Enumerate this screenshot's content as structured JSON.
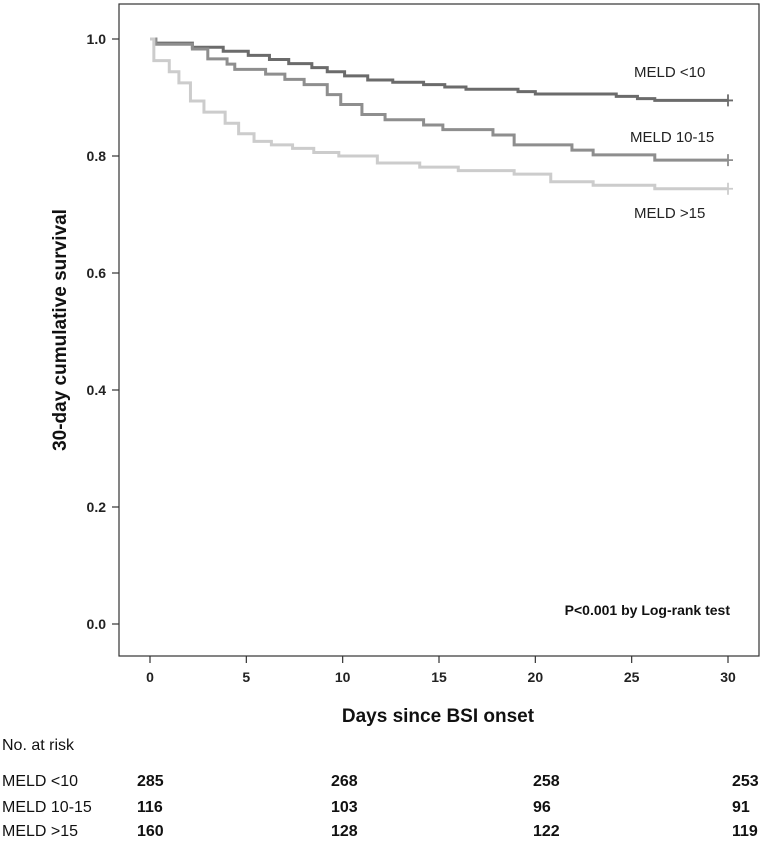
{
  "chart_data": {
    "type": "line",
    "subtype": "kaplan-meier step",
    "title": "",
    "xlabel": "Days since BSI onset",
    "ylabel": "30-day cumulative survival",
    "xlim": [
      0,
      30
    ],
    "ylim": [
      0,
      1.0
    ],
    "xticks": [
      "0",
      "5",
      "10",
      "15",
      "20",
      "25",
      "30"
    ],
    "yticks": [
      "0.0",
      "0.2",
      "0.4",
      "0.6",
      "0.8",
      "1.0"
    ],
    "grid": false,
    "annotation": "P<0.001 by Log-rank test",
    "series": [
      {
        "name": "MELD <10",
        "label": "MELD <10",
        "color": "#6b6b6b",
        "points": [
          [
            0,
            1.0
          ],
          [
            0.3,
            0.993
          ],
          [
            2.2,
            0.986
          ],
          [
            3.8,
            0.979
          ],
          [
            5.1,
            0.972
          ],
          [
            6.2,
            0.965
          ],
          [
            7.2,
            0.958
          ],
          [
            8.4,
            0.951
          ],
          [
            9.2,
            0.944
          ],
          [
            10.1,
            0.937
          ],
          [
            11.3,
            0.93
          ],
          [
            12.6,
            0.926
          ],
          [
            14.2,
            0.922
          ],
          [
            15.3,
            0.918
          ],
          [
            16.4,
            0.914
          ],
          [
            19.1,
            0.91
          ],
          [
            20.0,
            0.906
          ],
          [
            24.2,
            0.902
          ],
          [
            25.3,
            0.898
          ],
          [
            26.2,
            0.895
          ],
          [
            30,
            0.895
          ]
        ]
      },
      {
        "name": "MELD 10-15",
        "label": "MELD 10-15",
        "color": "#8e8e8e",
        "points": [
          [
            0,
            1.0
          ],
          [
            0.3,
            0.991
          ],
          [
            2.2,
            0.983
          ],
          [
            3.0,
            0.966
          ],
          [
            4.0,
            0.957
          ],
          [
            4.4,
            0.948
          ],
          [
            6.0,
            0.94
          ],
          [
            7.0,
            0.931
          ],
          [
            8.0,
            0.922
          ],
          [
            9.2,
            0.905
          ],
          [
            9.9,
            0.888
          ],
          [
            11.0,
            0.871
          ],
          [
            12.2,
            0.862
          ],
          [
            14.2,
            0.853
          ],
          [
            15.2,
            0.845
          ],
          [
            17.8,
            0.836
          ],
          [
            18.9,
            0.819
          ],
          [
            20.1,
            0.819
          ],
          [
            21.9,
            0.81
          ],
          [
            23.0,
            0.802
          ],
          [
            26.2,
            0.793
          ],
          [
            30,
            0.793
          ]
        ]
      },
      {
        "name": "MELD >15",
        "label": "MELD >15",
        "color": "#cccccc",
        "points": [
          [
            0,
            1.0
          ],
          [
            0.2,
            0.963
          ],
          [
            1.0,
            0.944
          ],
          [
            1.5,
            0.925
          ],
          [
            2.1,
            0.894
          ],
          [
            2.8,
            0.875
          ],
          [
            3.9,
            0.856
          ],
          [
            4.6,
            0.838
          ],
          [
            5.4,
            0.825
          ],
          [
            6.3,
            0.819
          ],
          [
            7.4,
            0.813
          ],
          [
            8.5,
            0.806
          ],
          [
            9.8,
            0.8
          ],
          [
            11.8,
            0.788
          ],
          [
            14.0,
            0.781
          ],
          [
            16.0,
            0.775
          ],
          [
            18.9,
            0.769
          ],
          [
            20.8,
            0.756
          ],
          [
            23.0,
            0.75
          ],
          [
            26.2,
            0.744
          ],
          [
            30,
            0.744
          ]
        ]
      }
    ]
  },
  "risk_table": {
    "title": "No. at risk",
    "rows": [
      {
        "name": "MELD <10",
        "values": [
          "285",
          "268",
          "258",
          "253"
        ]
      },
      {
        "name": "MELD 10-15",
        "values": [
          "116",
          "103",
          "96",
          "91"
        ]
      },
      {
        "name": "MELD >15",
        "values": [
          "160",
          "128",
          "122",
          "119"
        ]
      }
    ]
  }
}
